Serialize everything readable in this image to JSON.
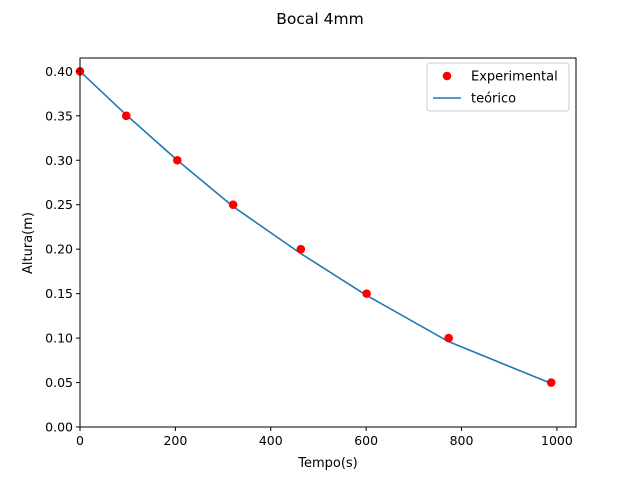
{
  "chart_data": {
    "type": "scatter",
    "title": "Bocal 4mm",
    "xlabel": "Tempo(s)",
    "ylabel": "Altura(m)",
    "xlim": [
      0,
      1040
    ],
    "ylim": [
      0.0,
      0.415
    ],
    "xticks": [
      0,
      200,
      400,
      600,
      800,
      1000
    ],
    "xtick_labels": [
      "0",
      "200",
      "400",
      "600",
      "800",
      "1000"
    ],
    "yticks": [
      0.0,
      0.05,
      0.1,
      0.15,
      0.2,
      0.25,
      0.3,
      0.35,
      0.4
    ],
    "ytick_labels": [
      "0.00",
      "0.05",
      "0.10",
      "0.15",
      "0.20",
      "0.25",
      "0.30",
      "0.35",
      "0.40"
    ],
    "grid": false,
    "legend_position": "top-right",
    "series": [
      {
        "name": "Experimental",
        "kind": "markers",
        "color": "#ff0000",
        "x": [
          0,
          97,
          204,
          321,
          463,
          601,
          773,
          988
        ],
        "y": [
          0.4,
          0.35,
          0.3,
          0.25,
          0.2,
          0.15,
          0.1,
          0.05
        ]
      },
      {
        "name": "teórico",
        "kind": "line",
        "color": "#1f77b4",
        "x": [
          0,
          97,
          204,
          321,
          463,
          601,
          773,
          988
        ],
        "y": [
          0.4,
          0.351,
          0.3,
          0.248,
          0.195,
          0.148,
          0.096,
          0.049
        ]
      }
    ]
  }
}
